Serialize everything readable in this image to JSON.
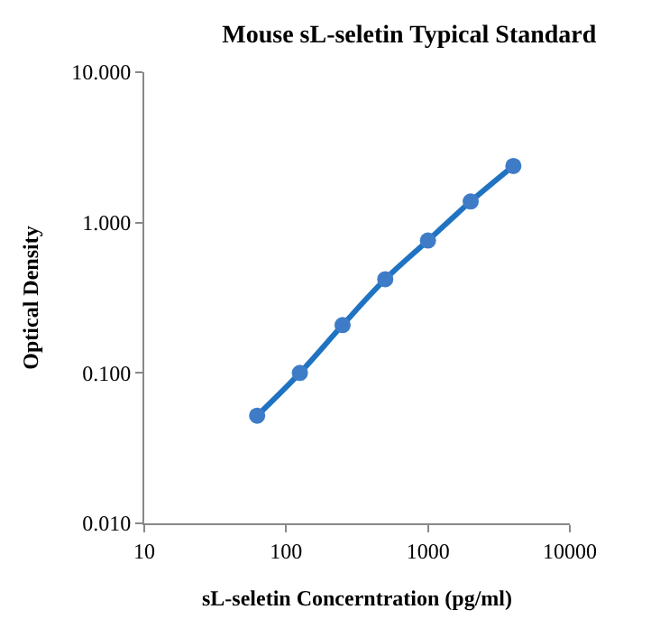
{
  "chart_data": {
    "type": "scatter",
    "title": "Mouse sL-seletin Typical Standard",
    "xlabel": "sL-seletin Concerntration (pg/ml)",
    "ylabel": "Optical Density",
    "x": [
      62.5,
      125,
      250,
      500,
      1000,
      2000,
      4000
    ],
    "series": [
      {
        "type": "line",
        "color": "#1f73c2",
        "values": [
          0.052,
          0.1,
          0.208,
          0.42,
          0.76,
          1.38,
          2.38
        ],
        "marker": "none"
      },
      {
        "color": "#3f7cc8",
        "values": [
          0.052,
          0.1,
          0.208,
          0.42,
          0.76,
          1.38,
          2.38
        ],
        "marker": "circle"
      }
    ],
    "log": "xy",
    "xlim": [
      10,
      10000
    ],
    "ylim": [
      0.01,
      10
    ],
    "xticks": [
      10,
      100,
      1000,
      10000
    ],
    "yticks": [
      {
        "value": 0.01,
        "label": "0.010"
      },
      {
        "value": 0.1,
        "label": "0.100"
      },
      {
        "value": 1,
        "label": "1.000"
      },
      {
        "value": 10,
        "label": "10.000"
      }
    ]
  }
}
